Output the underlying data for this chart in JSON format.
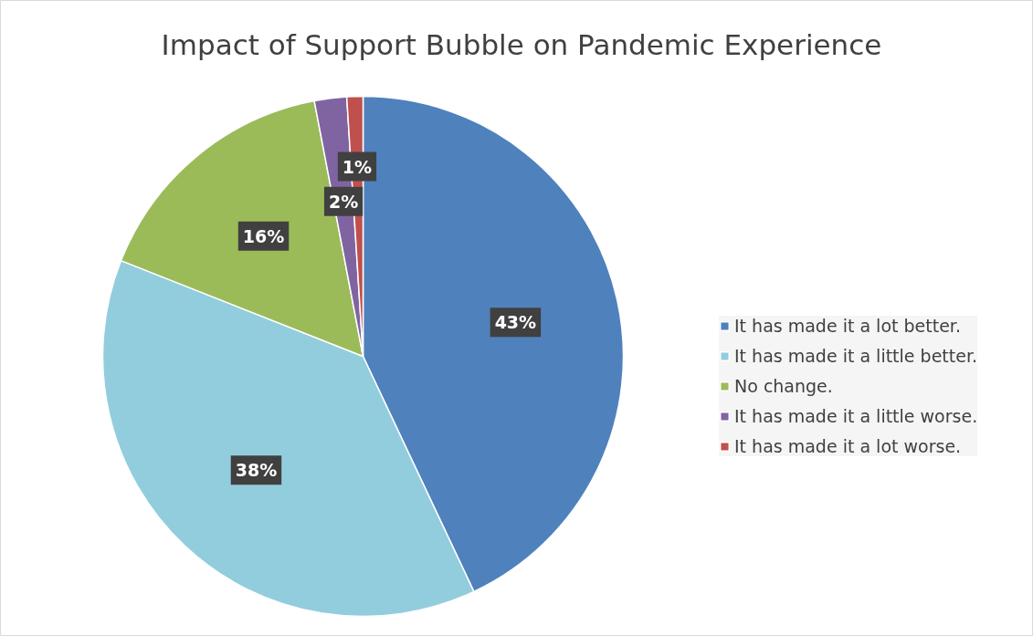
{
  "chart_data": {
    "type": "pie",
    "title": "Impact of Support Bubble on Pandemic Experience",
    "categories": [
      "It has made it a lot better.",
      "It has made it a little better.",
      "No change.",
      "It has made it a little worse.",
      "It has made it a lot worse."
    ],
    "values": [
      43,
      38,
      16,
      2,
      1
    ],
    "colors": [
      "#4f81bd",
      "#92cddd",
      "#9bbb59",
      "#8064a2",
      "#c0504d"
    ],
    "value_labels": [
      "43%",
      "38%",
      "16%",
      "2%",
      "1%"
    ],
    "legend": "right"
  }
}
